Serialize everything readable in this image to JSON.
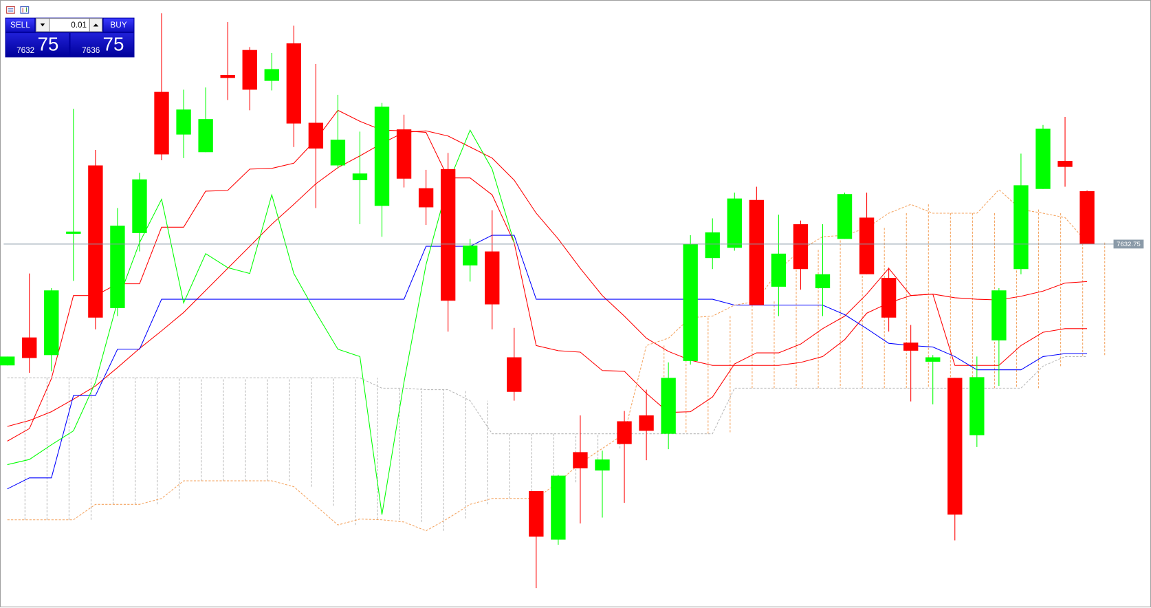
{
  "trade_panel": {
    "sell": "SELL",
    "buy": "BUY",
    "lot": "0.01",
    "bid_big": "7632",
    "bid_pips": "75",
    "ask_big": "7636",
    "ask_pips": "75"
  },
  "chart_data": {
    "type": "candlestick",
    "open": [
      7616.25,
      7620.05,
      7617.65,
      7634.15,
      7643.45,
      7624.05,
      7634.25,
      7653.45,
      7647.65,
      7645.25,
      7655.75,
      7659.15,
      7654.95,
      7660.05,
      7649.25,
      7643.45,
      7641.45,
      7637.95,
      7648.35,
      7640.35,
      7642.95,
      7629.85,
      7631.75,
      7617.35,
      7599.15,
      7592.55,
      7604.45,
      7601.95,
      7608.65,
      7609.45,
      7606.95,
      7616.85,
      7630.85,
      7632.25,
      7638.75,
      7626.95,
      7635.45,
      7626.75,
      7633.45,
      7636.35,
      7628.15,
      7619.35,
      7616.75,
      7614.55,
      7606.75,
      7619.65,
      7629.35,
      7640.25,
      7644.05,
      7639.95
    ],
    "high": [
      7617.45,
      7628.75,
      7626.75,
      7651.15,
      7645.55,
      7637.65,
      7642.45,
      7664.15,
      7653.75,
      7654.05,
      7662.95,
      7659.55,
      7658.75,
      7662.45,
      7657.25,
      7653.05,
      7648.05,
      7651.95,
      7650.35,
      7642.85,
      7645.15,
      7633.45,
      7637.35,
      7621.35,
      7599.15,
      7601.35,
      7609.45,
      7604.65,
      7610.05,
      7612.95,
      7616.65,
      7633.95,
      7636.25,
      7639.75,
      7640.55,
      7636.75,
      7635.95,
      7635.45,
      7639.75,
      7639.75,
      7629.55,
      7621.75,
      7617.65,
      7614.55,
      7617.45,
      7626.75,
      7645.05,
      7648.95,
      7650.05,
      7640.05
    ],
    "low": [
      7616.25,
      7615.25,
      7615.45,
      7627.75,
      7621.15,
      7622.95,
      7631.75,
      7644.15,
      7644.45,
      7645.25,
      7652.35,
      7650.95,
      7653.65,
      7645.95,
      7637.65,
      7643.05,
      7635.45,
      7633.75,
      7640.45,
      7635.35,
      7620.85,
      7627.65,
      7621.15,
      7611.45,
      7585.95,
      7591.85,
      7594.75,
      7595.55,
      7597.55,
      7603.35,
      7604.85,
      7616.35,
      7629.35,
      7631.85,
      7624.45,
      7622.95,
      7626.55,
      7622.95,
      7633.45,
      7628.65,
      7620.85,
      7611.35,
      7610.95,
      7592.45,
      7605.15,
      7613.45,
      7628.65,
      7640.25,
      7640.55,
      7632.75
    ],
    "close": [
      7617.45,
      7617.25,
      7626.45,
      7634.45,
      7622.75,
      7635.25,
      7641.55,
      7644.95,
      7651.05,
      7649.75,
      7655.35,
      7653.75,
      7656.55,
      7649.15,
      7645.75,
      7646.95,
      7642.35,
      7651.45,
      7641.65,
      7637.75,
      7625.05,
      7632.55,
      7624.55,
      7612.65,
      7592.95,
      7601.25,
      7602.25,
      7603.45,
      7605.55,
      7607.35,
      7614.55,
      7632.75,
      7634.35,
      7638.95,
      7624.45,
      7631.45,
      7629.35,
      7628.65,
      7639.55,
      7628.65,
      7622.75,
      7618.25,
      7617.35,
      7595.95,
      7614.65,
      7626.45,
      7640.75,
      7648.45,
      7643.25,
      7632.75
    ],
    "up_color": "#00ff00",
    "down_color": "#ff0000",
    "ylim": [
      7583,
      7666
    ],
    "price_line": 7632.75,
    "price_line_color": "#8a9aa8",
    "lines": [
      {
        "color": "#ff0000",
        "values": [
          7605.95,
          7607.65,
          7614.45,
          7625.75,
          7625.75,
          7627.35,
          7627.35,
          7635.05,
          7635.05,
          7639.95,
          7640.05,
          7642.95,
          7643.05,
          7643.75,
          7646.95,
          7650.95,
          7649.45,
          7648.25,
          7648.15,
          7647.95,
          7641.75,
          7641.75,
          7639.45,
          7632.95,
          7618.95,
          7618.25,
          7618.05,
          7615.55,
          7615.45,
          7612.45,
          7609.85,
          7609.95,
          7611.95,
          7616.45,
          7617.95,
          7617.95,
          7619.15,
          7621.25,
          7622.95,
          7625.95,
          7629.45,
          7625.75,
          7625.95,
          7616.25,
          7616.25,
          7616.25,
          7618.95,
          7620.75,
          7621.25,
          7621.25
        ]
      },
      {
        "color": "#ff0000",
        "values": [
          7607.95,
          7608.75,
          7609.95,
          7611.65,
          7613.45,
          7615.95,
          7618.55,
          7620.95,
          7623.45,
          7626.45,
          7629.45,
          7632.45,
          7635.45,
          7638.15,
          7640.95,
          7643.15,
          7644.75,
          7646.45,
          7647.95,
          7648.15,
          7647.45,
          7645.95,
          7644.45,
          7641.45,
          7636.95,
          7633.45,
          7629.45,
          7625.75,
          7622.95,
          7619.95,
          7618.15,
          7616.95,
          7616.25,
          7616.25,
          7616.25,
          7616.25,
          7616.65,
          7617.45,
          7619.75,
          7623.35,
          7624.75,
          7625.75,
          7625.95,
          7625.45,
          7625.25,
          7625.15,
          7625.65,
          7626.35,
          7627.45,
          7627.65
        ]
      },
      {
        "color": "#0000ff",
        "values": [
          7599.45,
          7600.95,
          7600.95,
          7612.15,
          7612.15,
          7618.45,
          7618.45,
          7625.25,
          7625.25,
          7625.25,
          7625.25,
          7625.25,
          7625.25,
          7625.25,
          7625.25,
          7625.25,
          7625.25,
          7625.25,
          7625.25,
          7632.45,
          7632.45,
          7632.45,
          7633.95,
          7633.95,
          7625.25,
          7625.25,
          7625.25,
          7625.25,
          7625.25,
          7625.25,
          7625.25,
          7625.25,
          7625.25,
          7624.45,
          7624.45,
          7624.45,
          7624.45,
          7624.45,
          7623.15,
          7621.25,
          7619.25,
          7618.95,
          7618.75,
          7617.45,
          7615.65,
          7615.65,
          7615.65,
          7617.45,
          7617.85,
          7617.85
        ]
      },
      {
        "color": "#00ff00",
        "values": [
          7602.75,
          7603.45,
          7605.45,
          7607.35,
          7613.95,
          7624.95,
          7632.95,
          7638.85,
          7624.75,
          7631.45,
          7629.55,
          7628.75,
          7639.45,
          7628.75,
          7623.45,
          7618.45,
          7617.45,
          7595.95,
          7613.95,
          7629.95,
          7640.95,
          7648.25,
          7642.95,
          7632.95,
          null,
          null,
          null,
          null,
          null,
          null,
          null,
          null,
          null,
          null,
          null,
          null,
          null,
          null,
          null,
          null,
          null,
          null,
          null,
          null,
          null,
          null,
          null,
          null,
          null,
          null
        ]
      },
      {
        "color": "#f4a460",
        "style": "dotted",
        "values": [
          7595.25,
          7595.25,
          7595.25,
          7595.25,
          7597.35,
          7597.35,
          7597.35,
          7598.15,
          7600.55,
          7600.55,
          7600.55,
          7600.55,
          7600.55,
          7599.75,
          7597.15,
          7594.55,
          7595.35,
          7595.25,
          7594.95,
          7593.75,
          7595.45,
          7597.35,
          7598.15,
          7598.15,
          7598.15,
          7600.35,
          7602.95,
          7604.95,
          7606.95,
          7618.95,
          7619.95,
          7622.75,
          7622.95,
          7624.45,
          7624.95,
          7629.25,
          7631.95,
          7633.75,
          7633.95,
          7634.95,
          7636.95,
          7638.15,
          7636.95,
          7636.95,
          7636.95,
          7640.15,
          7637.45,
          7636.95,
          7636.35,
          7632.95
        ]
      },
      {
        "color": "#b8b8b8",
        "style": "dotted",
        "values": [
          7614.55,
          7614.55,
          7614.55,
          7614.55,
          7614.55,
          7614.55,
          7614.55,
          7614.55,
          7614.55,
          7614.55,
          7614.55,
          7614.55,
          7614.55,
          7614.55,
          7614.55,
          7614.55,
          7614.55,
          7613.15,
          7613.15,
          7612.95,
          7612.95,
          7611.45,
          7606.95,
          7606.95,
          7606.95,
          7606.95,
          7606.95,
          7606.95,
          7606.95,
          7606.95,
          7606.95,
          7606.95,
          7606.95,
          7613.15,
          7613.15,
          7613.15,
          7613.15,
          7613.15,
          7613.15,
          7613.15,
          7613.15,
          7613.15,
          7613.15,
          7613.15,
          7613.15,
          7613.15,
          7613.15,
          7616.15,
          7617.45,
          7617.45
        ]
      }
    ]
  }
}
